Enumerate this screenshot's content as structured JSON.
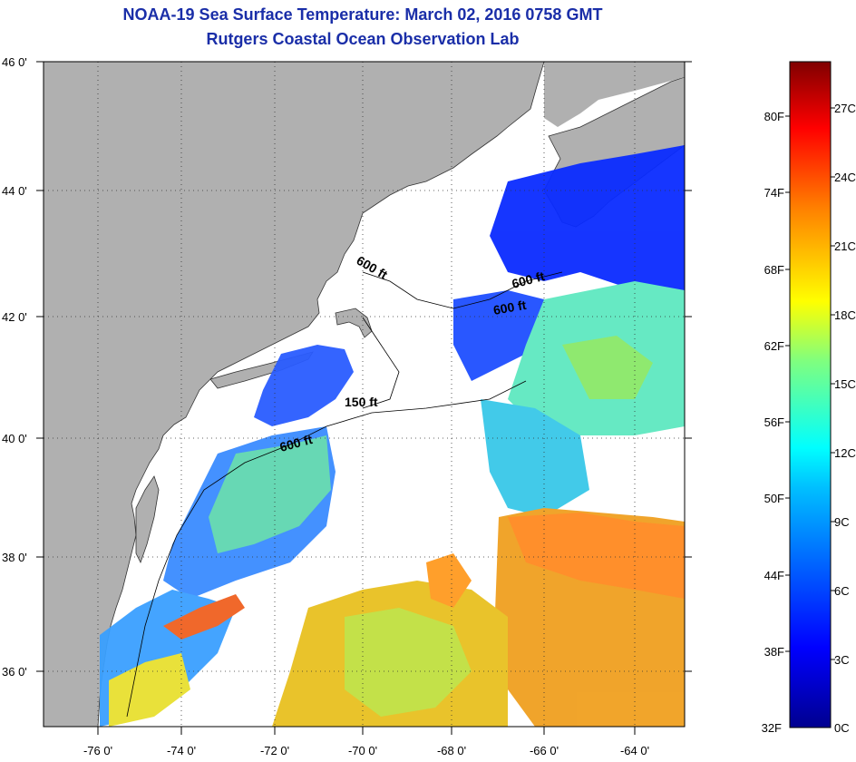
{
  "title": {
    "line1": "NOAA-19 Sea Surface Temperature:  March 02, 2016 0758 GMT",
    "line2": "Rutgers Coastal Ocean Observation Lab"
  },
  "map": {
    "lat_labels": [
      "46 0'",
      "44 0'",
      "42 0'",
      "40 0'",
      "38 0'",
      "36 0'"
    ],
    "lon_labels": [
      "-76 0'",
      "-74 0'",
      "-72 0'",
      "-70 0'",
      "-68 0'",
      "-66 0'",
      "-64 0'"
    ],
    "contour_labels": [
      "600 ft",
      "600 ft",
      "600 ft",
      "150 ft",
      "600 ft"
    ],
    "land_color": "#b0b0b0",
    "no_data_color": "#ffffff"
  },
  "colorbar": {
    "fahrenheit_labels": [
      "80F",
      "74F",
      "68F",
      "62F",
      "56F",
      "50F",
      "44F",
      "38F",
      "32F"
    ],
    "celsius_labels": [
      "27C",
      "24C",
      "21C",
      "18C",
      "15C",
      "12C",
      "9C",
      "6C",
      "3C",
      "0C"
    ]
  }
}
